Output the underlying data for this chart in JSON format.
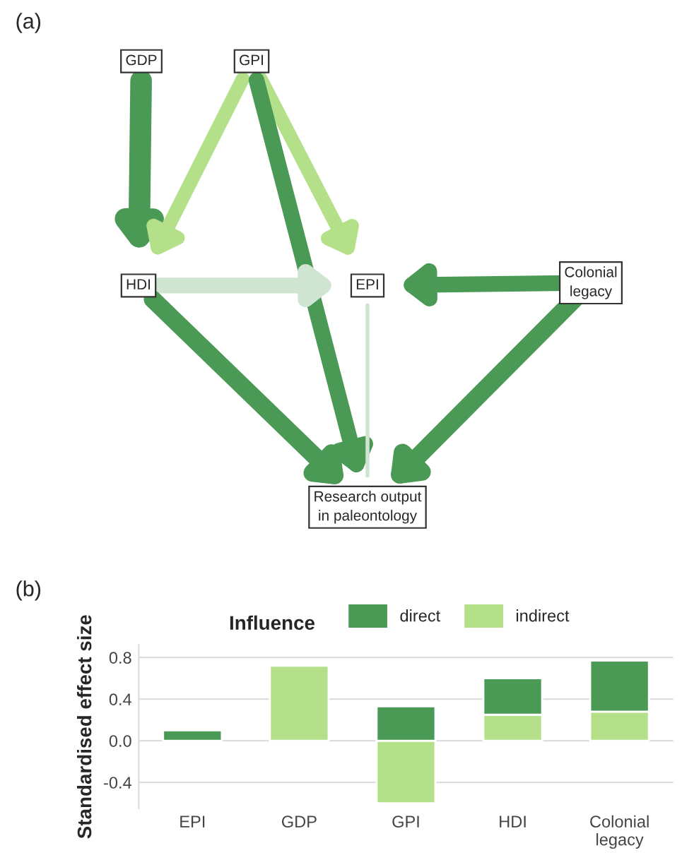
{
  "chart_data": [
    {
      "type": "other",
      "title": "(a)",
      "annotations": [
        "GDP",
        "GPI",
        "HDI",
        "EPI",
        "Colonial\nlegacy",
        "Research output\nin paleontology"
      ]
    },
    {
      "type": "bar",
      "title": "(b)",
      "ylabel": "Standardised effect size",
      "legend_title": "Influence",
      "categories": [
        "EPI",
        "GDP",
        "GPI",
        "HDI",
        "Colonial\nlegacy"
      ],
      "stacked": true,
      "series": [
        {
          "name": "indirect",
          "color": "#b5e08a",
          "values": [
            null,
            0.72,
            -0.6,
            0.25,
            0.28
          ]
        },
        {
          "name": "direct",
          "color": "#4a9a56",
          "values": [
            0.1,
            null,
            0.33,
            0.35,
            0.49
          ]
        }
      ],
      "ylim": [
        -0.65,
        0.92
      ],
      "yticks": [
        {
          "value": -0.4,
          "label": "-0.4"
        },
        {
          "value": 0,
          "label": "0.0"
        },
        {
          "value": 0.4,
          "label": "0.4"
        },
        {
          "value": 0.8,
          "label": "0.8"
        }
      ],
      "grid": "y",
      "legend": "top"
    }
  ]
}
